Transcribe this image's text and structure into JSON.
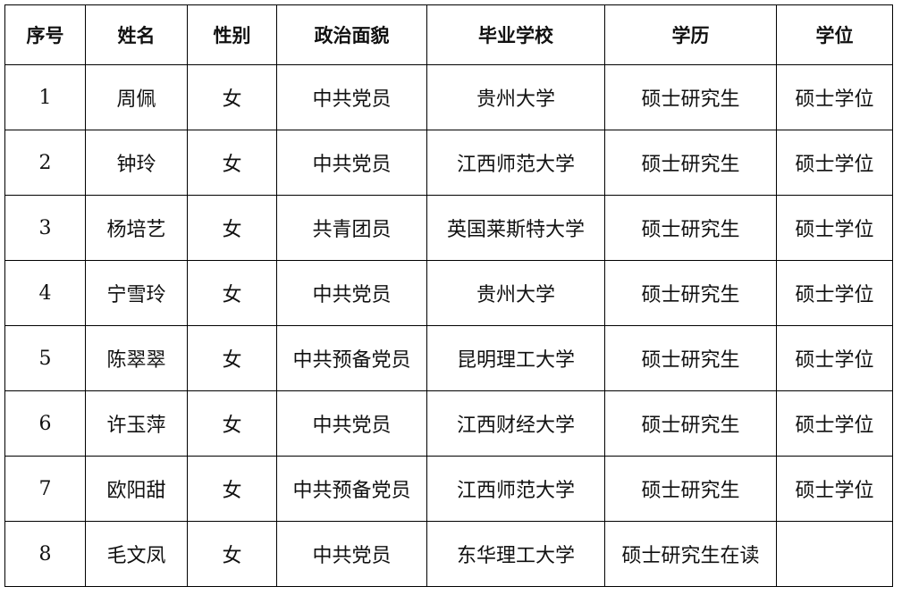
{
  "table": {
    "headers": [
      "序号",
      "姓名",
      "性别",
      "政治面貌",
      "毕业学校",
      "学历",
      "学位"
    ],
    "rows": [
      [
        "1",
        "周佩",
        "女",
        "中共党员",
        "贵州大学",
        "硕士研究生",
        "硕士学位"
      ],
      [
        "2",
        "钟玲",
        "女",
        "中共党员",
        "江西师范大学",
        "硕士研究生",
        "硕士学位"
      ],
      [
        "3",
        "杨培艺",
        "女",
        "共青团员",
        "英国莱斯特大学",
        "硕士研究生",
        "硕士学位"
      ],
      [
        "4",
        "宁雪玲",
        "女",
        "中共党员",
        "贵州大学",
        "硕士研究生",
        "硕士学位"
      ],
      [
        "5",
        "陈翠翠",
        "女",
        "中共预备党员",
        "昆明理工大学",
        "硕士研究生",
        "硕士学位"
      ],
      [
        "6",
        "许玉萍",
        "女",
        "中共党员",
        "江西财经大学",
        "硕士研究生",
        "硕士学位"
      ],
      [
        "7",
        "欧阳甜",
        "女",
        "中共预备党员",
        "江西师范大学",
        "硕士研究生",
        "硕士学位"
      ],
      [
        "8",
        "毛文凤",
        "女",
        "中共党员",
        "东华理工大学",
        "硕士研究生在读",
        ""
      ]
    ]
  }
}
